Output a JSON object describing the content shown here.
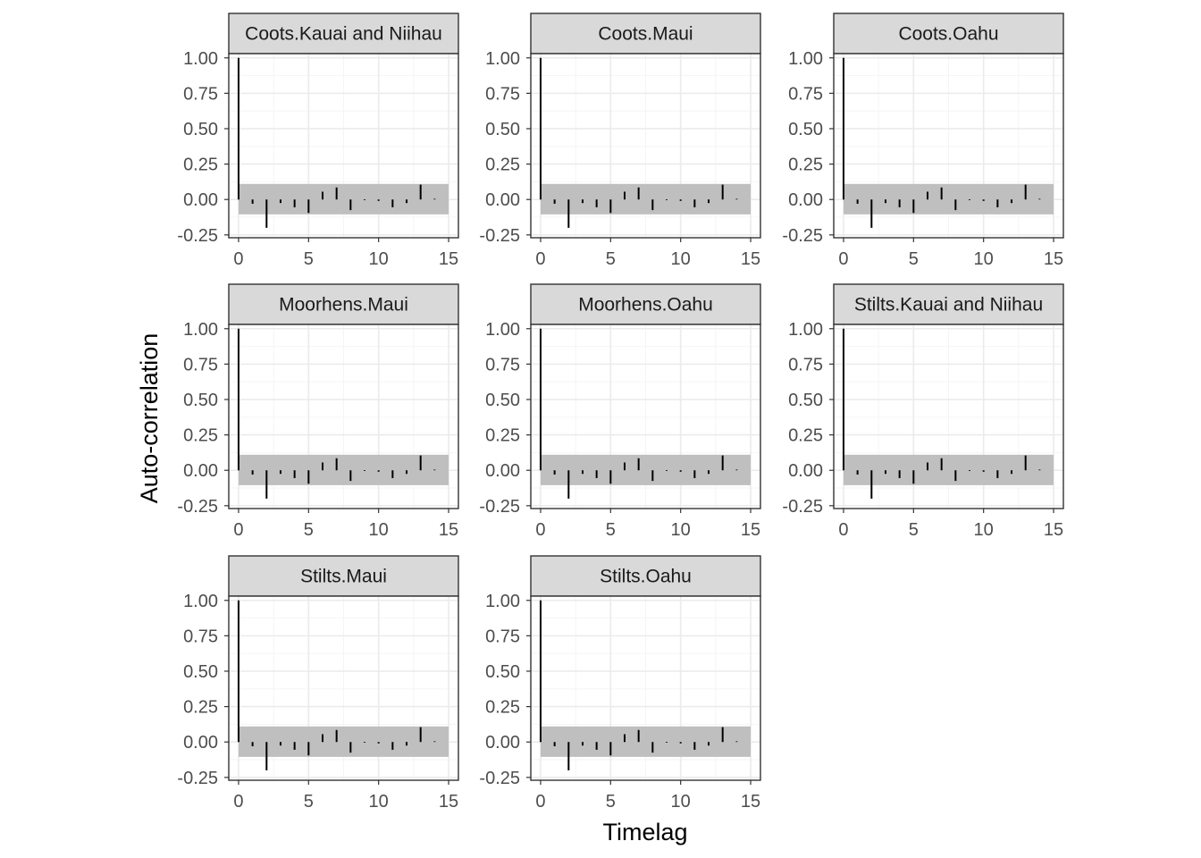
{
  "chart_data": {
    "type": "bar",
    "facet_layout": "3 columns",
    "xlabel": "Timelag",
    "ylabel": "Auto-correlation",
    "xlim": [
      -0.7,
      15.7
    ],
    "ylim": [
      -0.27,
      1.03
    ],
    "x_ticks": [
      0,
      5,
      10,
      15
    ],
    "y_ticks": [
      -0.25,
      0,
      0.25,
      0.5,
      0.75,
      1.0
    ],
    "y_tick_labels": [
      "-0.25",
      "0.00",
      "0.25",
      "0.50",
      "0.75",
      "1.00"
    ],
    "grid": true,
    "confidence_band": [
      -0.105,
      0.11
    ],
    "colors": {
      "bar": "#000000",
      "band": "#bfbfbf",
      "strip_fill": "#d9d9d9",
      "panel_border": "#333333",
      "grid_major": "#ebebeb",
      "grid_minor": "#f5f5f5"
    },
    "panels": [
      {
        "strip": "Coots.Kauai and Niihau",
        "lags": [
          0,
          1,
          2,
          3,
          4,
          5,
          6,
          7,
          8,
          9,
          10,
          11,
          12,
          13,
          14,
          15
        ],
        "acf": [
          1.0,
          -0.03,
          -0.2,
          -0.025,
          -0.055,
          -0.095,
          0.055,
          0.085,
          -0.075,
          -0.005,
          -0.01,
          -0.055,
          -0.025,
          0.105,
          0.005,
          0.0
        ]
      },
      {
        "strip": "Coots.Maui",
        "lags": [
          0,
          1,
          2,
          3,
          4,
          5,
          6,
          7,
          8,
          9,
          10,
          11,
          12,
          13,
          14,
          15
        ],
        "acf": [
          1.0,
          -0.03,
          -0.2,
          -0.025,
          -0.055,
          -0.095,
          0.055,
          0.085,
          -0.075,
          -0.005,
          -0.01,
          -0.055,
          -0.025,
          0.105,
          0.005,
          0.0
        ]
      },
      {
        "strip": "Coots.Oahu",
        "lags": [
          0,
          1,
          2,
          3,
          4,
          5,
          6,
          7,
          8,
          9,
          10,
          11,
          12,
          13,
          14,
          15
        ],
        "acf": [
          1.0,
          -0.03,
          -0.2,
          -0.025,
          -0.055,
          -0.095,
          0.055,
          0.085,
          -0.075,
          -0.005,
          -0.01,
          -0.055,
          -0.025,
          0.105,
          0.005,
          0.0
        ]
      },
      {
        "strip": "Moorhens.Maui",
        "lags": [
          0,
          1,
          2,
          3,
          4,
          5,
          6,
          7,
          8,
          9,
          10,
          11,
          12,
          13,
          14,
          15
        ],
        "acf": [
          1.0,
          -0.03,
          -0.2,
          -0.025,
          -0.055,
          -0.095,
          0.055,
          0.085,
          -0.075,
          -0.005,
          -0.01,
          -0.055,
          -0.025,
          0.105,
          0.005,
          0.0
        ]
      },
      {
        "strip": "Moorhens.Oahu",
        "lags": [
          0,
          1,
          2,
          3,
          4,
          5,
          6,
          7,
          8,
          9,
          10,
          11,
          12,
          13,
          14,
          15
        ],
        "acf": [
          1.0,
          -0.03,
          -0.2,
          -0.025,
          -0.055,
          -0.095,
          0.055,
          0.085,
          -0.075,
          -0.005,
          -0.01,
          -0.055,
          -0.025,
          0.105,
          0.005,
          0.0
        ]
      },
      {
        "strip": "Stilts.Kauai and Niihau",
        "lags": [
          0,
          1,
          2,
          3,
          4,
          5,
          6,
          7,
          8,
          9,
          10,
          11,
          12,
          13,
          14,
          15
        ],
        "acf": [
          1.0,
          -0.03,
          -0.2,
          -0.025,
          -0.055,
          -0.095,
          0.055,
          0.085,
          -0.075,
          -0.005,
          -0.01,
          -0.055,
          -0.025,
          0.105,
          0.005,
          0.0
        ]
      },
      {
        "strip": "Stilts.Maui",
        "lags": [
          0,
          1,
          2,
          3,
          4,
          5,
          6,
          7,
          8,
          9,
          10,
          11,
          12,
          13,
          14,
          15
        ],
        "acf": [
          1.0,
          -0.03,
          -0.2,
          -0.025,
          -0.055,
          -0.095,
          0.055,
          0.085,
          -0.075,
          -0.005,
          -0.01,
          -0.055,
          -0.025,
          0.105,
          0.005,
          0.0
        ]
      },
      {
        "strip": "Stilts.Oahu",
        "lags": [
          0,
          1,
          2,
          3,
          4,
          5,
          6,
          7,
          8,
          9,
          10,
          11,
          12,
          13,
          14,
          15
        ],
        "acf": [
          1.0,
          -0.03,
          -0.2,
          -0.025,
          -0.055,
          -0.095,
          0.055,
          0.085,
          -0.075,
          -0.005,
          -0.01,
          -0.055,
          -0.025,
          0.105,
          0.005,
          0.0
        ]
      }
    ]
  }
}
